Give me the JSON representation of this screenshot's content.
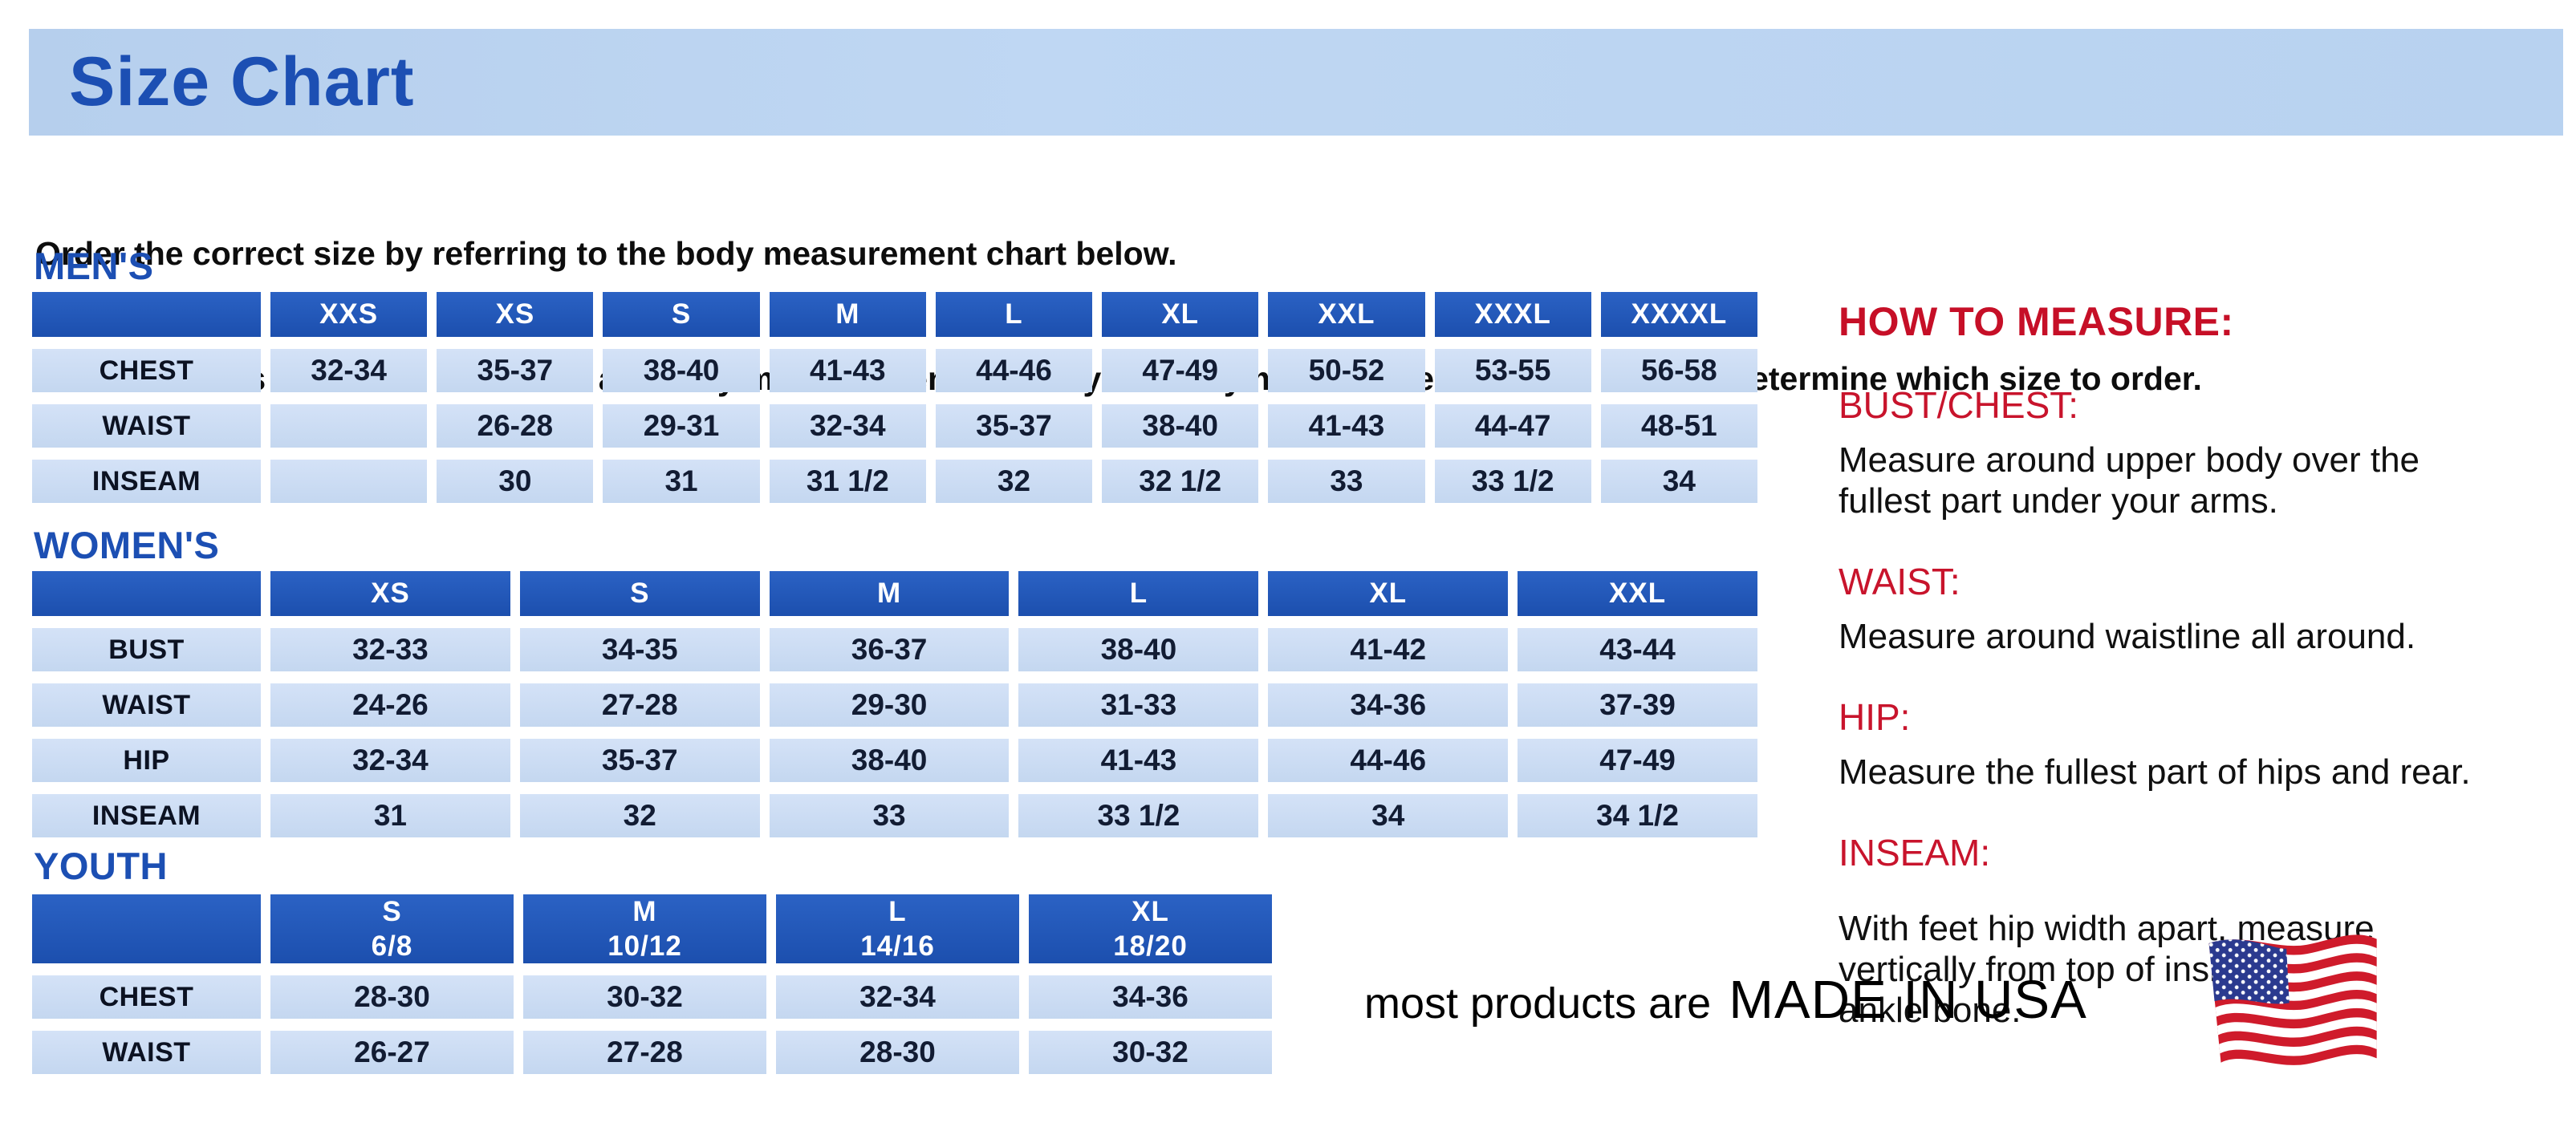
{
  "page": {
    "title": "Size Chart",
    "intro_line1": "Order the correct size by referring to the body measurement chart below.",
    "intro_line2": "Measurements shown on size chart are body measurements.  Find your body measurements on the chart to determine which size to order."
  },
  "colors": {
    "banner_bg": "#bcd4f0",
    "heading_blue": "#1c4fb3",
    "table_header_blue": "#1f55b8",
    "table_cell_blue": "#cbdcf3",
    "accent_red": "#c8142c",
    "flag_red": "#cf1b2b",
    "flag_navy": "#2b3a8f"
  },
  "tables": {
    "mens": {
      "heading": "MEN'S",
      "columns": [
        "",
        "XXS",
        "XS",
        "S",
        "M",
        "L",
        "XL",
        "XXL",
        "XXXL",
        "XXXXL"
      ],
      "rows": [
        {
          "label": "CHEST",
          "values": [
            "32-34",
            "35-37",
            "38-40",
            "41-43",
            "44-46",
            "47-49",
            "50-52",
            "53-55",
            "56-58"
          ]
        },
        {
          "label": "WAIST",
          "values": [
            "",
            "26-28",
            "29-31",
            "32-34",
            "35-37",
            "38-40",
            "41-43",
            "44-47",
            "48-51"
          ]
        },
        {
          "label": "INSEAM",
          "values": [
            "",
            "30",
            "31",
            "31 1/2",
            "32",
            "32 1/2",
            "33",
            "33 1/2",
            "34"
          ]
        }
      ]
    },
    "womens": {
      "heading": "WOMEN'S",
      "columns": [
        "",
        "XS",
        "S",
        "M",
        "L",
        "XL",
        "XXL"
      ],
      "rows": [
        {
          "label": "BUST",
          "values": [
            "32-33",
            "34-35",
            "36-37",
            "38-40",
            "41-42",
            "43-44"
          ]
        },
        {
          "label": "WAIST",
          "values": [
            "24-26",
            "27-28",
            "29-30",
            "31-33",
            "34-36",
            "37-39"
          ]
        },
        {
          "label": "HIP",
          "values": [
            "32-34",
            "35-37",
            "38-40",
            "41-43",
            "44-46",
            "47-49"
          ]
        },
        {
          "label": "INSEAM",
          "values": [
            "31",
            "32",
            "33",
            "33 1/2",
            "34",
            "34 1/2"
          ]
        }
      ]
    },
    "youth": {
      "heading": "YOUTH",
      "columns": [
        "",
        "S\n6/8",
        "M\n10/12",
        "L\n14/16",
        "XL\n18/20"
      ],
      "rows": [
        {
          "label": "CHEST",
          "values": [
            "28-30",
            "30-32",
            "32-34",
            "34-36"
          ]
        },
        {
          "label": "WAIST",
          "values": [
            "26-27",
            "27-28",
            "28-30",
            "30-32"
          ]
        }
      ]
    }
  },
  "how_to_measure": {
    "heading": "HOW TO MEASURE:",
    "items": [
      {
        "label": "BUST/CHEST:",
        "text": "Measure around upper body over the\nfullest part under your arms."
      },
      {
        "label": "WAIST:",
        "text": "Measure around waistline all around."
      },
      {
        "label": "HIP:",
        "text": "Measure the fullest part of hips and rear."
      },
      {
        "label": "INSEAM:",
        "text": "With feet hip width apart, measure\nvertically from top of inside leg to\nankle bone."
      }
    ]
  },
  "footer": {
    "prefix": "most products are",
    "made_in": "MADE IN USA",
    "flag_icon": "usa-flag-icon"
  }
}
